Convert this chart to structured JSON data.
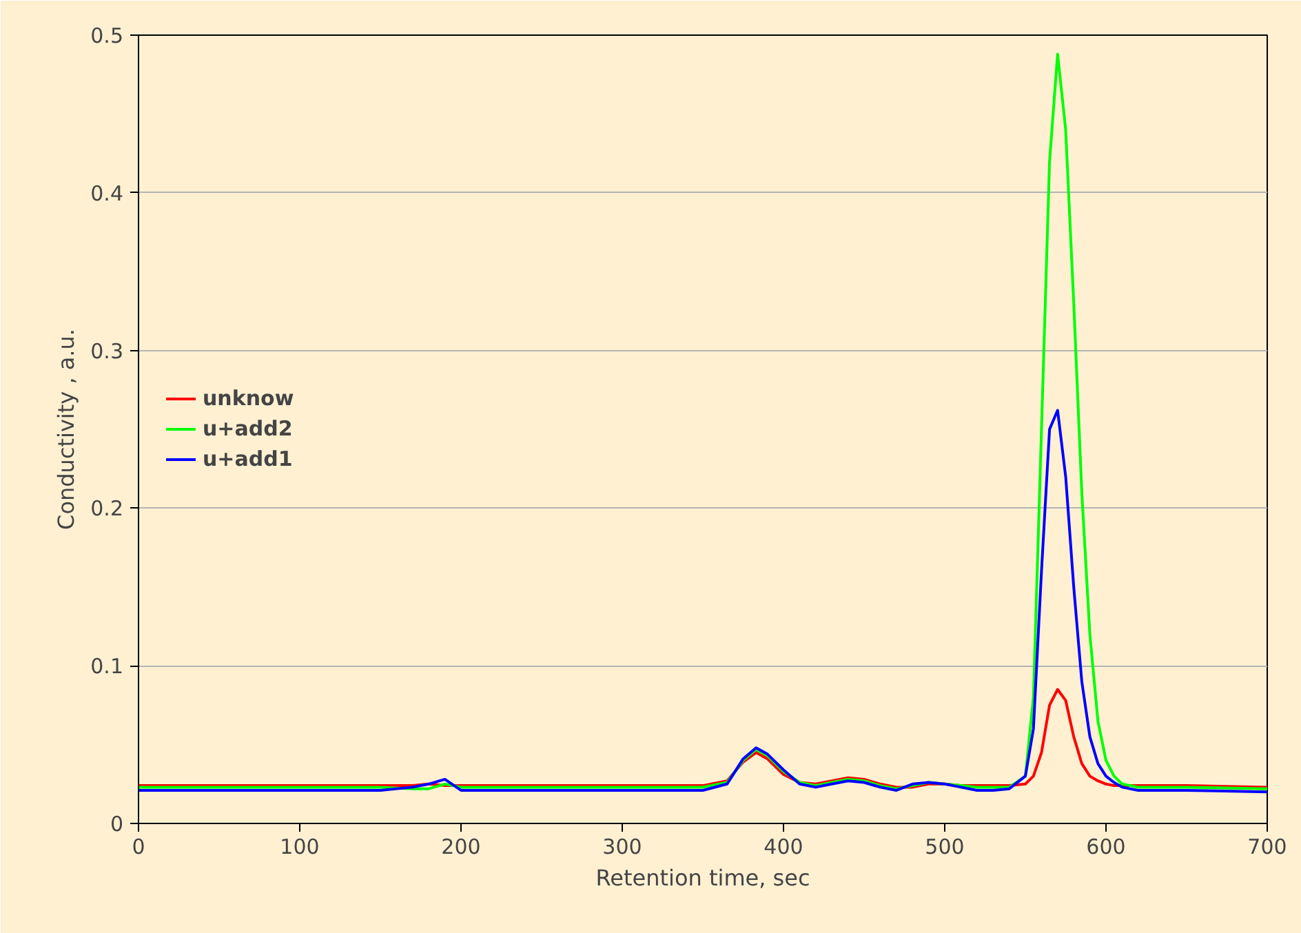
{
  "chart_data": {
    "type": "line",
    "xlabel": "Retention time, sec",
    "ylabel": "Conductivity , a.u.",
    "x": [
      0,
      50,
      100,
      150,
      170,
      180,
      190,
      200,
      210,
      250,
      300,
      350,
      365,
      375,
      383,
      390,
      400,
      410,
      420,
      430,
      440,
      450,
      460,
      470,
      480,
      490,
      500,
      510,
      520,
      530,
      540,
      550,
      555,
      560,
      565,
      570,
      575,
      580,
      585,
      590,
      595,
      600,
      605,
      610,
      620,
      650,
      700
    ],
    "series": [
      {
        "name": "unknow",
        "color": "#ff0000",
        "values": [
          0.024,
          0.024,
          0.024,
          0.024,
          0.024,
          0.025,
          0.024,
          0.024,
          0.024,
          0.024,
          0.024,
          0.024,
          0.027,
          0.039,
          0.045,
          0.041,
          0.031,
          0.026,
          0.025,
          0.027,
          0.029,
          0.028,
          0.025,
          0.023,
          0.023,
          0.025,
          0.025,
          0.024,
          0.024,
          0.024,
          0.024,
          0.025,
          0.03,
          0.045,
          0.075,
          0.085,
          0.078,
          0.055,
          0.038,
          0.03,
          0.027,
          0.025,
          0.024,
          0.024,
          0.024,
          0.024,
          0.023
        ]
      },
      {
        "name": "u+add2",
        "color": "#00ff00",
        "values": [
          0.023,
          0.023,
          0.023,
          0.023,
          0.022,
          0.022,
          0.025,
          0.023,
          0.023,
          0.023,
          0.023,
          0.023,
          0.026,
          0.04,
          0.047,
          0.043,
          0.033,
          0.026,
          0.024,
          0.026,
          0.028,
          0.027,
          0.024,
          0.022,
          0.024,
          0.026,
          0.025,
          0.024,
          0.023,
          0.023,
          0.023,
          0.03,
          0.08,
          0.25,
          0.42,
          0.488,
          0.44,
          0.33,
          0.21,
          0.12,
          0.065,
          0.04,
          0.03,
          0.025,
          0.023,
          0.023,
          0.022
        ]
      },
      {
        "name": "u+add1",
        "color": "#0000ff",
        "values": [
          0.021,
          0.021,
          0.021,
          0.021,
          0.023,
          0.025,
          0.028,
          0.021,
          0.021,
          0.021,
          0.021,
          0.021,
          0.025,
          0.041,
          0.048,
          0.044,
          0.034,
          0.025,
          0.023,
          0.025,
          0.027,
          0.026,
          0.023,
          0.021,
          0.025,
          0.026,
          0.025,
          0.023,
          0.021,
          0.021,
          0.022,
          0.03,
          0.06,
          0.16,
          0.25,
          0.262,
          0.22,
          0.15,
          0.09,
          0.055,
          0.038,
          0.03,
          0.026,
          0.023,
          0.021,
          0.021,
          0.02
        ]
      }
    ],
    "xlim": [
      0,
      700
    ],
    "xticks": [
      0,
      100,
      200,
      300,
      400,
      500,
      600,
      700
    ],
    "ylim": [
      0,
      0.5
    ],
    "yticks": [
      0,
      0.1,
      0.2,
      0.3,
      0.4,
      0.5
    ],
    "grid": "y",
    "legend": "left",
    "line_style": "solid",
    "marker": "none"
  }
}
